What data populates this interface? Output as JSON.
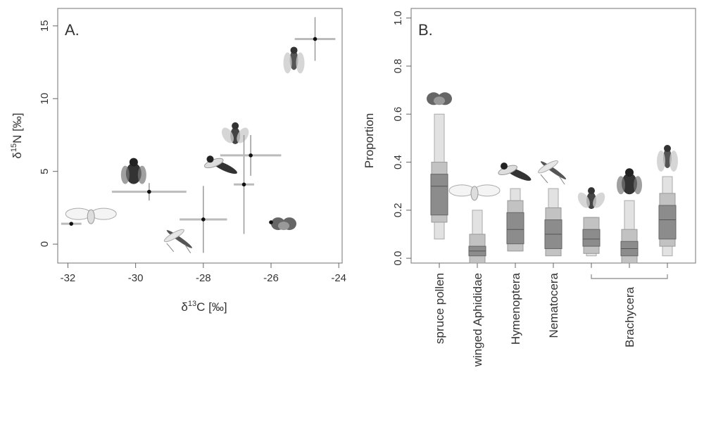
{
  "chart_data": [
    {
      "type": "scatter",
      "panel_label": "A.",
      "xlabel_parts": [
        "δ",
        "13",
        "C  [‰]"
      ],
      "ylabel_parts": [
        "δ",
        "15",
        "N  [‰]"
      ],
      "xlim": [
        -32.3,
        -23.9
      ],
      "ylim": [
        -1.3,
        16.2
      ],
      "xticks": [
        -32,
        -30,
        -28,
        -26,
        -24
      ],
      "yticks": [
        0,
        5,
        10,
        15
      ],
      "points": [
        {
          "x": -31.9,
          "y": 1.4,
          "xerr": 0.3,
          "yerr": 0.1,
          "icon": "aphid-icon"
        },
        {
          "x": -29.6,
          "y": 3.6,
          "xerr": 1.1,
          "yerr": 0.6,
          "icon": "black-fly-icon"
        },
        {
          "x": -28.0,
          "y": 1.7,
          "xerr": 0.7,
          "yerr": 2.3,
          "icon": "nematocera-icon"
        },
        {
          "x": -26.8,
          "y": 4.1,
          "xerr": 0.3,
          "yerr": 3.4,
          "icon": "hymenoptera-icon"
        },
        {
          "x": -26.6,
          "y": 6.1,
          "xerr": 0.9,
          "yerr": 1.4,
          "icon": "brachycera-icon"
        },
        {
          "x": -26.0,
          "y": 1.5,
          "xerr": 0.05,
          "yerr": 0.05,
          "icon": "pollen-icon"
        },
        {
          "x": -24.7,
          "y": 14.1,
          "xerr": 0.6,
          "yerr": 1.5,
          "icon": "winged-fly-icon"
        }
      ]
    },
    {
      "type": "boxplot",
      "panel_label": "B.",
      "ylabel": "Proportion",
      "ylim": [
        -0.02,
        1.04
      ],
      "yticks": [
        0.0,
        0.2,
        0.4,
        0.6,
        0.8,
        1.0
      ],
      "categories": [
        "spruce pollen",
        "winged Aphididae",
        "Hymenoptera",
        "Nematocera",
        "",
        "",
        ""
      ],
      "group_label": "Brachycera",
      "group_span": [
        4,
        6
      ],
      "boxes": [
        {
          "p05": 0.08,
          "p25": 0.18,
          "p50": 0.3,
          "p75": 0.35,
          "p95": 0.6,
          "icon": "pollen-icon"
        },
        {
          "p05": 0.01,
          "p25": 0.01,
          "p50": 0.03,
          "p75": 0.05,
          "p95": 0.2,
          "icon": "aphid-icon"
        },
        {
          "p05": 0.03,
          "p25": 0.06,
          "p50": 0.12,
          "p75": 0.19,
          "p95": 0.29,
          "icon": "hymenoptera-icon"
        },
        {
          "p05": 0.02,
          "p25": 0.04,
          "p50": 0.1,
          "p75": 0.16,
          "p95": 0.29,
          "icon": "nematocera-icon"
        },
        {
          "p05": 0.01,
          "p25": 0.05,
          "p50": 0.08,
          "p75": 0.12,
          "p95": 0.17,
          "icon": "brachycera-icon"
        },
        {
          "p05": 0.0,
          "p25": 0.01,
          "p50": 0.04,
          "p75": 0.07,
          "p95": 0.24,
          "icon": "black-fly-icon"
        },
        {
          "p05": 0.01,
          "p25": 0.08,
          "p50": 0.16,
          "p75": 0.22,
          "p95": 0.34,
          "icon": "winged-fly-icon"
        }
      ]
    }
  ]
}
